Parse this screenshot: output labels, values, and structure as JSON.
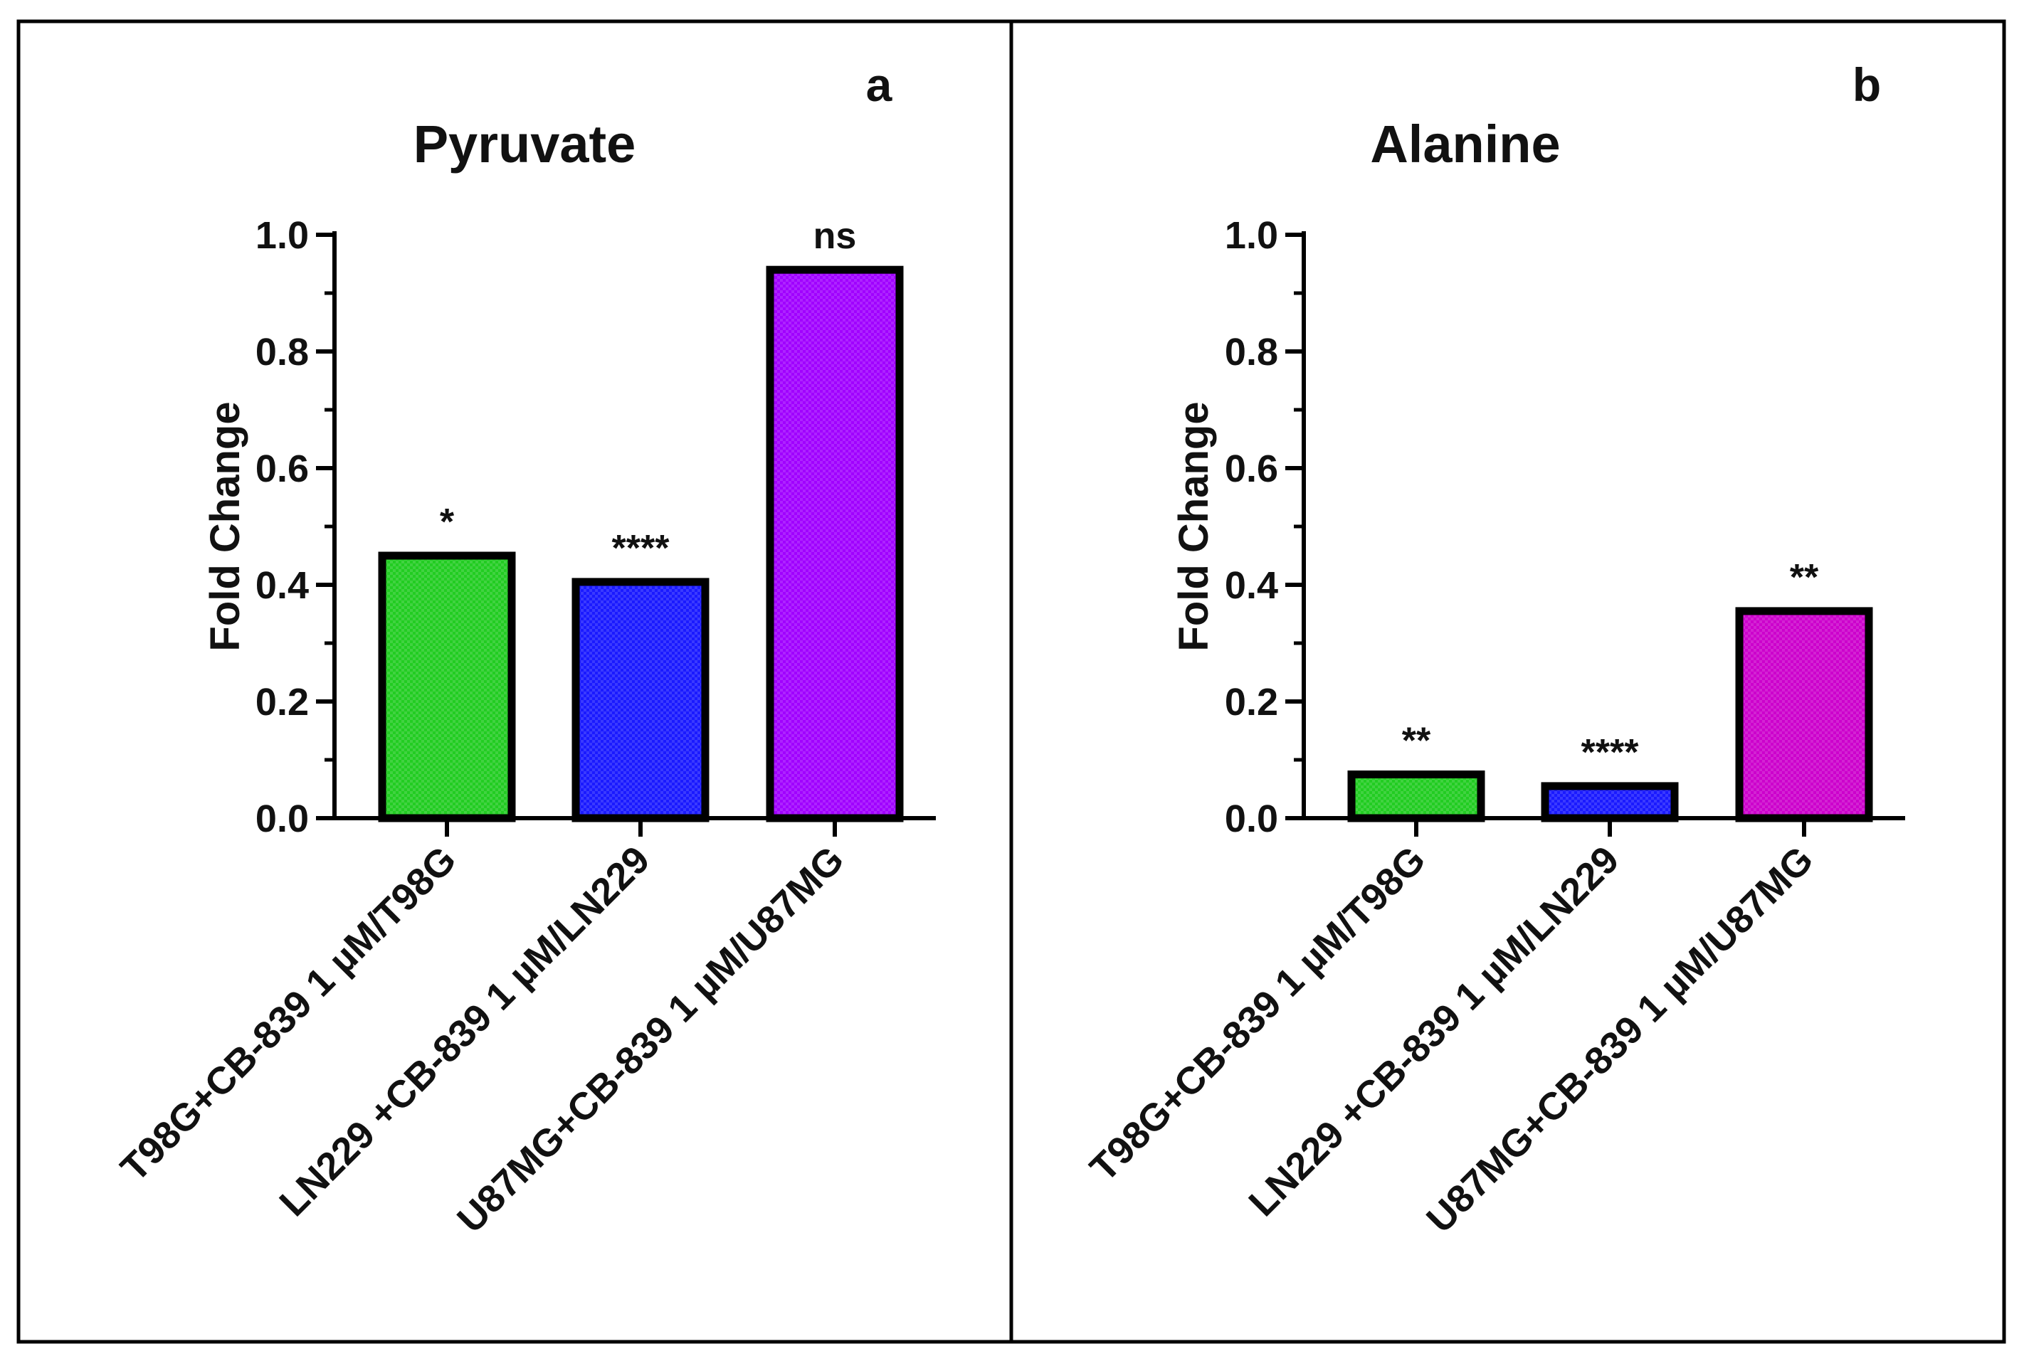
{
  "chart_data": [
    {
      "type": "bar",
      "panel_label": "a",
      "title": "Pyruvate",
      "ylabel": "Fold Change",
      "xlabel": "",
      "ylim": [
        0,
        1.0
      ],
      "yticks": [
        "0.0",
        "0.2",
        "0.4",
        "0.6",
        "0.8",
        "1.0"
      ],
      "categories": [
        "T98G+CB-839 1 µM/T98G",
        "LN229 +CB-839 1 µM/LN229",
        "U87MG+CB-839 1  µM/U87MG"
      ],
      "values": [
        0.45,
        0.405,
        0.94
      ],
      "significance": [
        "*",
        "****",
        "ns"
      ],
      "colors": [
        "#22cc22",
        "#1a1aff",
        "#a000ff"
      ]
    },
    {
      "type": "bar",
      "panel_label": "b",
      "title": "Alanine",
      "ylabel": "Fold Change",
      "xlabel": "",
      "ylim": [
        0,
        1.0
      ],
      "yticks": [
        "0.0",
        "0.2",
        "0.4",
        "0.6",
        "0.8",
        "1.0"
      ],
      "categories": [
        "T98G+CB-839 1 µM/T98G",
        "LN229 +CB-839 1 µM/LN229",
        "U87MG+CB-839 1  µM/U87MG"
      ],
      "values": [
        0.075,
        0.055,
        0.355
      ],
      "significance": [
        "**",
        "****",
        "**"
      ],
      "colors": [
        "#22cc22",
        "#1a1aff",
        "#cc00cc"
      ]
    }
  ]
}
